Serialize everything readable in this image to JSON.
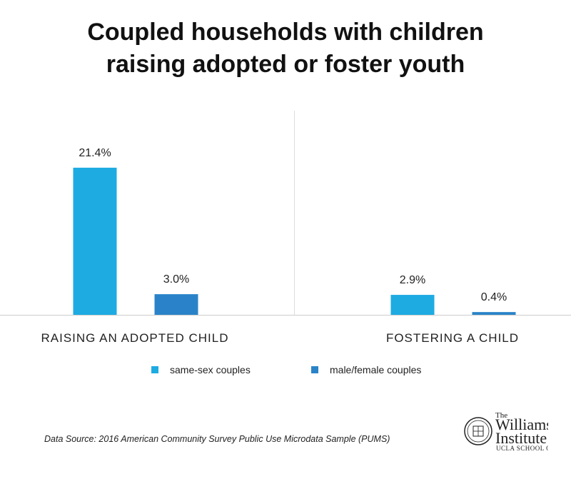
{
  "title_line1": "Coupled households with children",
  "title_line2": "raising adopted or foster youth",
  "chart_data": {
    "type": "bar",
    "categories": [
      "RAISING AN ADOPTED CHILD",
      "FOSTERING A CHILD"
    ],
    "series": [
      {
        "name": "same-sex couples",
        "values": [
          21.4,
          2.9
        ],
        "labels": [
          "21.4%",
          "2.9%"
        ],
        "color": "#1DABE2"
      },
      {
        "name": "male/female couples",
        "values": [
          3.0,
          0.4
        ],
        "labels": [
          "3.0%",
          "0.4%"
        ],
        "color": "#2A83C8"
      }
    ],
    "ylim": [
      0,
      25
    ],
    "unit": "%",
    "grid": false,
    "legend": "bottom"
  },
  "source": "Data Source: 2016 American Community Survey Public Use Microdata Sample (PUMS)",
  "logo": {
    "the": "The",
    "name_line1": "Williams",
    "name_line2": "Institute",
    "sub": "UCLA SCHOOL OF LAW"
  }
}
